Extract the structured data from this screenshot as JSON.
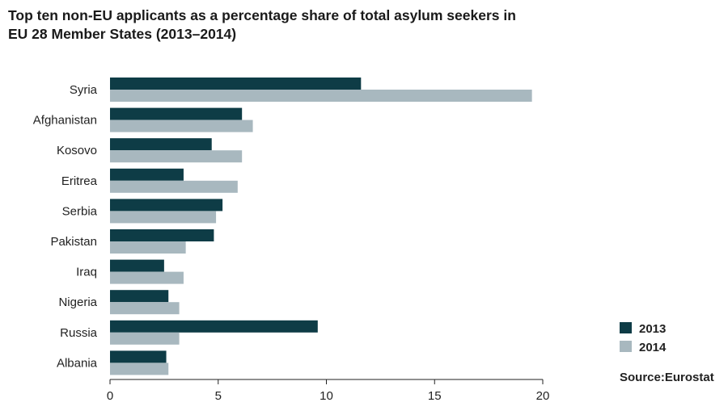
{
  "colors": {
    "series_2013": "#0e3c46",
    "series_2014": "#a8b8bf",
    "axis": "#222222"
  },
  "chart_data": {
    "type": "bar",
    "orientation": "horizontal",
    "title_lines": [
      "Top ten non-EU applicants as a percentage share of total asylum seekers in",
      "EU 28 Member States (2013–2014)"
    ],
    "categories": [
      "Syria",
      "Afghanistan",
      "Kosovo",
      "Eritrea",
      "Serbia",
      "Pakistan",
      "Iraq",
      "Nigeria",
      "Russia",
      "Albania"
    ],
    "series": [
      {
        "name": "2013",
        "values": [
          11.6,
          6.1,
          4.7,
          3.4,
          5.2,
          4.8,
          2.5,
          2.7,
          9.6,
          2.6
        ]
      },
      {
        "name": "2014",
        "values": [
          19.5,
          6.6,
          6.1,
          5.9,
          4.9,
          3.5,
          3.4,
          3.2,
          3.2,
          2.7
        ]
      }
    ],
    "xlim": [
      0,
      20
    ],
    "xticks": [
      "0",
      "5",
      "10",
      "15",
      "20"
    ],
    "grid": false,
    "legend_position": "bottom-right",
    "source": "Source:Eurostat"
  }
}
